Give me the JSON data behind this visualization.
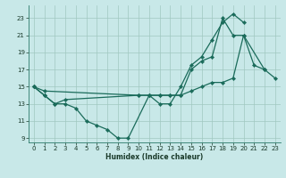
{
  "xlabel": "Humidex (Indice chaleur)",
  "bg_color": "#c8e8e8",
  "grid_color": "#a0c8c0",
  "line_color": "#1a6b5a",
  "spine_color": "#2a7a6a",
  "xlim": [
    -0.5,
    23.5
  ],
  "ylim": [
    8.5,
    24.5
  ],
  "xticks": [
    0,
    1,
    2,
    3,
    4,
    5,
    6,
    7,
    8,
    9,
    10,
    11,
    12,
    13,
    14,
    15,
    16,
    17,
    18,
    19,
    20,
    21,
    22,
    23
  ],
  "yticks": [
    9,
    11,
    13,
    15,
    17,
    19,
    21,
    23
  ],
  "line1_x": [
    0,
    1,
    2,
    3,
    4,
    5,
    6,
    7,
    8,
    9,
    11,
    12,
    13,
    14,
    15,
    16,
    17,
    18,
    19,
    20
  ],
  "line1_y": [
    15,
    14,
    13,
    13,
    12.5,
    11,
    10.5,
    10,
    9,
    9,
    14,
    13,
    13,
    15,
    17.5,
    18.5,
    20.5,
    22.5,
    23.5,
    22.5
  ],
  "line2_x": [
    0,
    1,
    2,
    3,
    10,
    11,
    12,
    13,
    14,
    15,
    16,
    17,
    18,
    19,
    20,
    21,
    22
  ],
  "line2_y": [
    15,
    14,
    13,
    13.5,
    14,
    14,
    14,
    14,
    14,
    17,
    18,
    18.5,
    23,
    21,
    21,
    17.5,
    17
  ],
  "line3_x": [
    0,
    1,
    10,
    11,
    12,
    13,
    14,
    15,
    16,
    17,
    18,
    19,
    20,
    22,
    23
  ],
  "line3_y": [
    15,
    14.5,
    14,
    14,
    14,
    14,
    14,
    14.5,
    15,
    15.5,
    15.5,
    16,
    21,
    17,
    16
  ]
}
